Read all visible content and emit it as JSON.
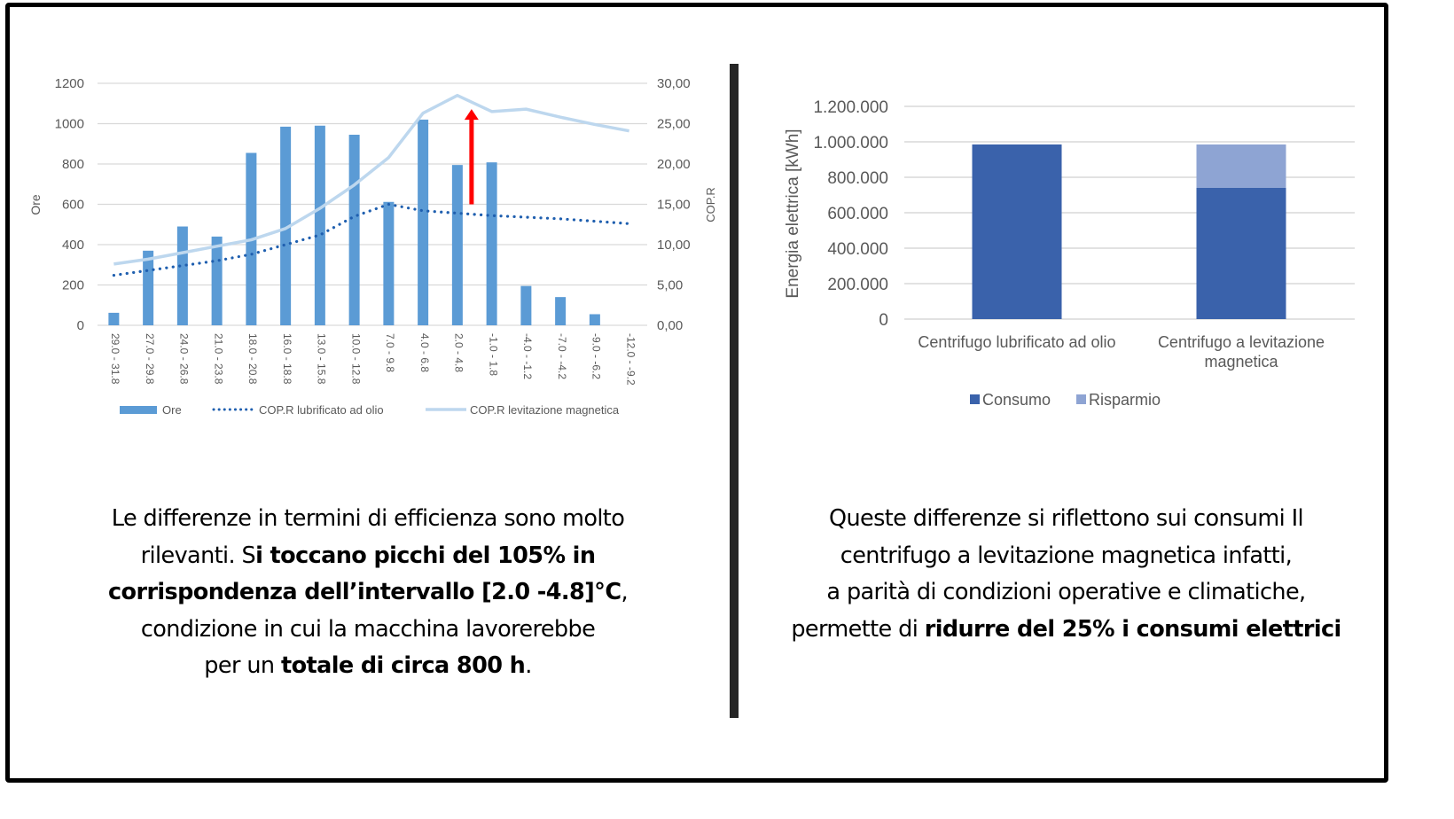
{
  "colors": {
    "bar_ore": "#5B9BD5",
    "cop_oil": "#1F5FAF",
    "cop_mag": "#BDD7EE",
    "arrow": "#FF0000",
    "consumo": "#3A62AB",
    "risparmio": "#8EA4D3",
    "grid": "#D9D9D9",
    "axis_text": "#595959"
  },
  "chart_data": [
    {
      "type": "bar",
      "title": "",
      "xlabel": "",
      "ylabel": "Ore",
      "ylabel_right": "COP.R",
      "ylim": [
        0,
        1200
      ],
      "ylim_right": [
        0,
        30
      ],
      "yticks": [
        "0",
        "200",
        "400",
        "600",
        "800",
        "1000",
        "1200"
      ],
      "yticks_right": [
        "0,00",
        "5,00",
        "10,00",
        "15,00",
        "20,00",
        "25,00",
        "30,00"
      ],
      "grid": true,
      "legend_position": "bottom",
      "categories": [
        "29.0 - 31.8",
        "27.0 - 29.8",
        "24.0 - 26.8",
        "21.0 - 23.8",
        "18.0 - 20.8",
        "16.0 - 18.8",
        "13.0 - 15.8",
        "10.0 - 12.8",
        "7.0 - 9.8",
        "4.0 - 6.8",
        "2.0 - 4.8",
        "-1.0 - 1.8",
        "-4.0 - -1.2",
        "-7.0 - -4.2",
        "-9.0 - -6.2",
        "-12.0 - -9.2"
      ],
      "series": [
        {
          "name": "Ore",
          "type": "bar",
          "axis": "left",
          "values": [
            62,
            370,
            490,
            440,
            855,
            985,
            990,
            945,
            612,
            1020,
            795,
            808,
            195,
            140,
            55,
            0
          ]
        },
        {
          "name": "COP.R lubrificato ad olio",
          "type": "line",
          "style": "dotted",
          "axis": "right",
          "values": [
            6.2,
            6.8,
            7.4,
            8.0,
            8.8,
            10.0,
            11.2,
            13.5,
            15.0,
            14.2,
            13.9,
            13.6,
            13.4,
            13.2,
            12.9,
            12.6
          ]
        },
        {
          "name": "COP.R levitazione magnetica",
          "type": "line",
          "style": "solid",
          "axis": "right",
          "values": [
            7.6,
            8.2,
            9.0,
            9.8,
            10.6,
            12.0,
            14.5,
            17.4,
            20.8,
            26.3,
            28.5,
            26.5,
            26.8,
            25.8,
            24.9,
            24.1
          ]
        }
      ],
      "annotations": [
        {
          "type": "arrow",
          "color": "red",
          "category": "2.0 - 4.8",
          "from": 15,
          "to": 26.8,
          "note": "aumento COP.R"
        }
      ]
    },
    {
      "type": "bar",
      "stacked": true,
      "title": "",
      "xlabel": "",
      "ylabel": "Energia elettrica [kWh]",
      "ylim": [
        0,
        1200000
      ],
      "yticks": [
        "0",
        "200.000",
        "400.000",
        "600.000",
        "800.000",
        "1.000.000",
        "1.200.000"
      ],
      "grid": true,
      "legend_position": "bottom",
      "categories": [
        "Centrifugo lubrificato ad olio",
        "Centrifugo a levitazione magnetica"
      ],
      "category_lines": [
        [
          "Centrifugo lubrificato ad olio"
        ],
        [
          "Centrifugo a levitazione",
          "magnetica"
        ]
      ],
      "series": [
        {
          "name": "Consumo",
          "values": [
            985000,
            740000
          ]
        },
        {
          "name": "Risparmio",
          "values": [
            0,
            245000
          ]
        }
      ]
    }
  ],
  "left_caption": {
    "l1": "Le differenze in termini di efficienza sono molto",
    "l2a": "rilevanti. S",
    "l2b": "i toccano picchi del 105% in",
    "l3a": "corrispondenza dell’intervallo [2.0 -4.8]°C",
    "l3b": ",",
    "l4": "condizione in cui la macchina lavorerebbe",
    "l5a": "per un ",
    "l5b": "totale di circa 800 h",
    "l5c": "."
  },
  "right_caption": {
    "l1": "Queste differenze si riflettono sui consumi Il",
    "l2": "centrifugo a levitazione magnetica infatti,",
    "l3": "a parità di condizioni operative e climatiche,",
    "l4a": "permette di ",
    "l4b": "ridurre del 25% i consumi elettrici"
  }
}
